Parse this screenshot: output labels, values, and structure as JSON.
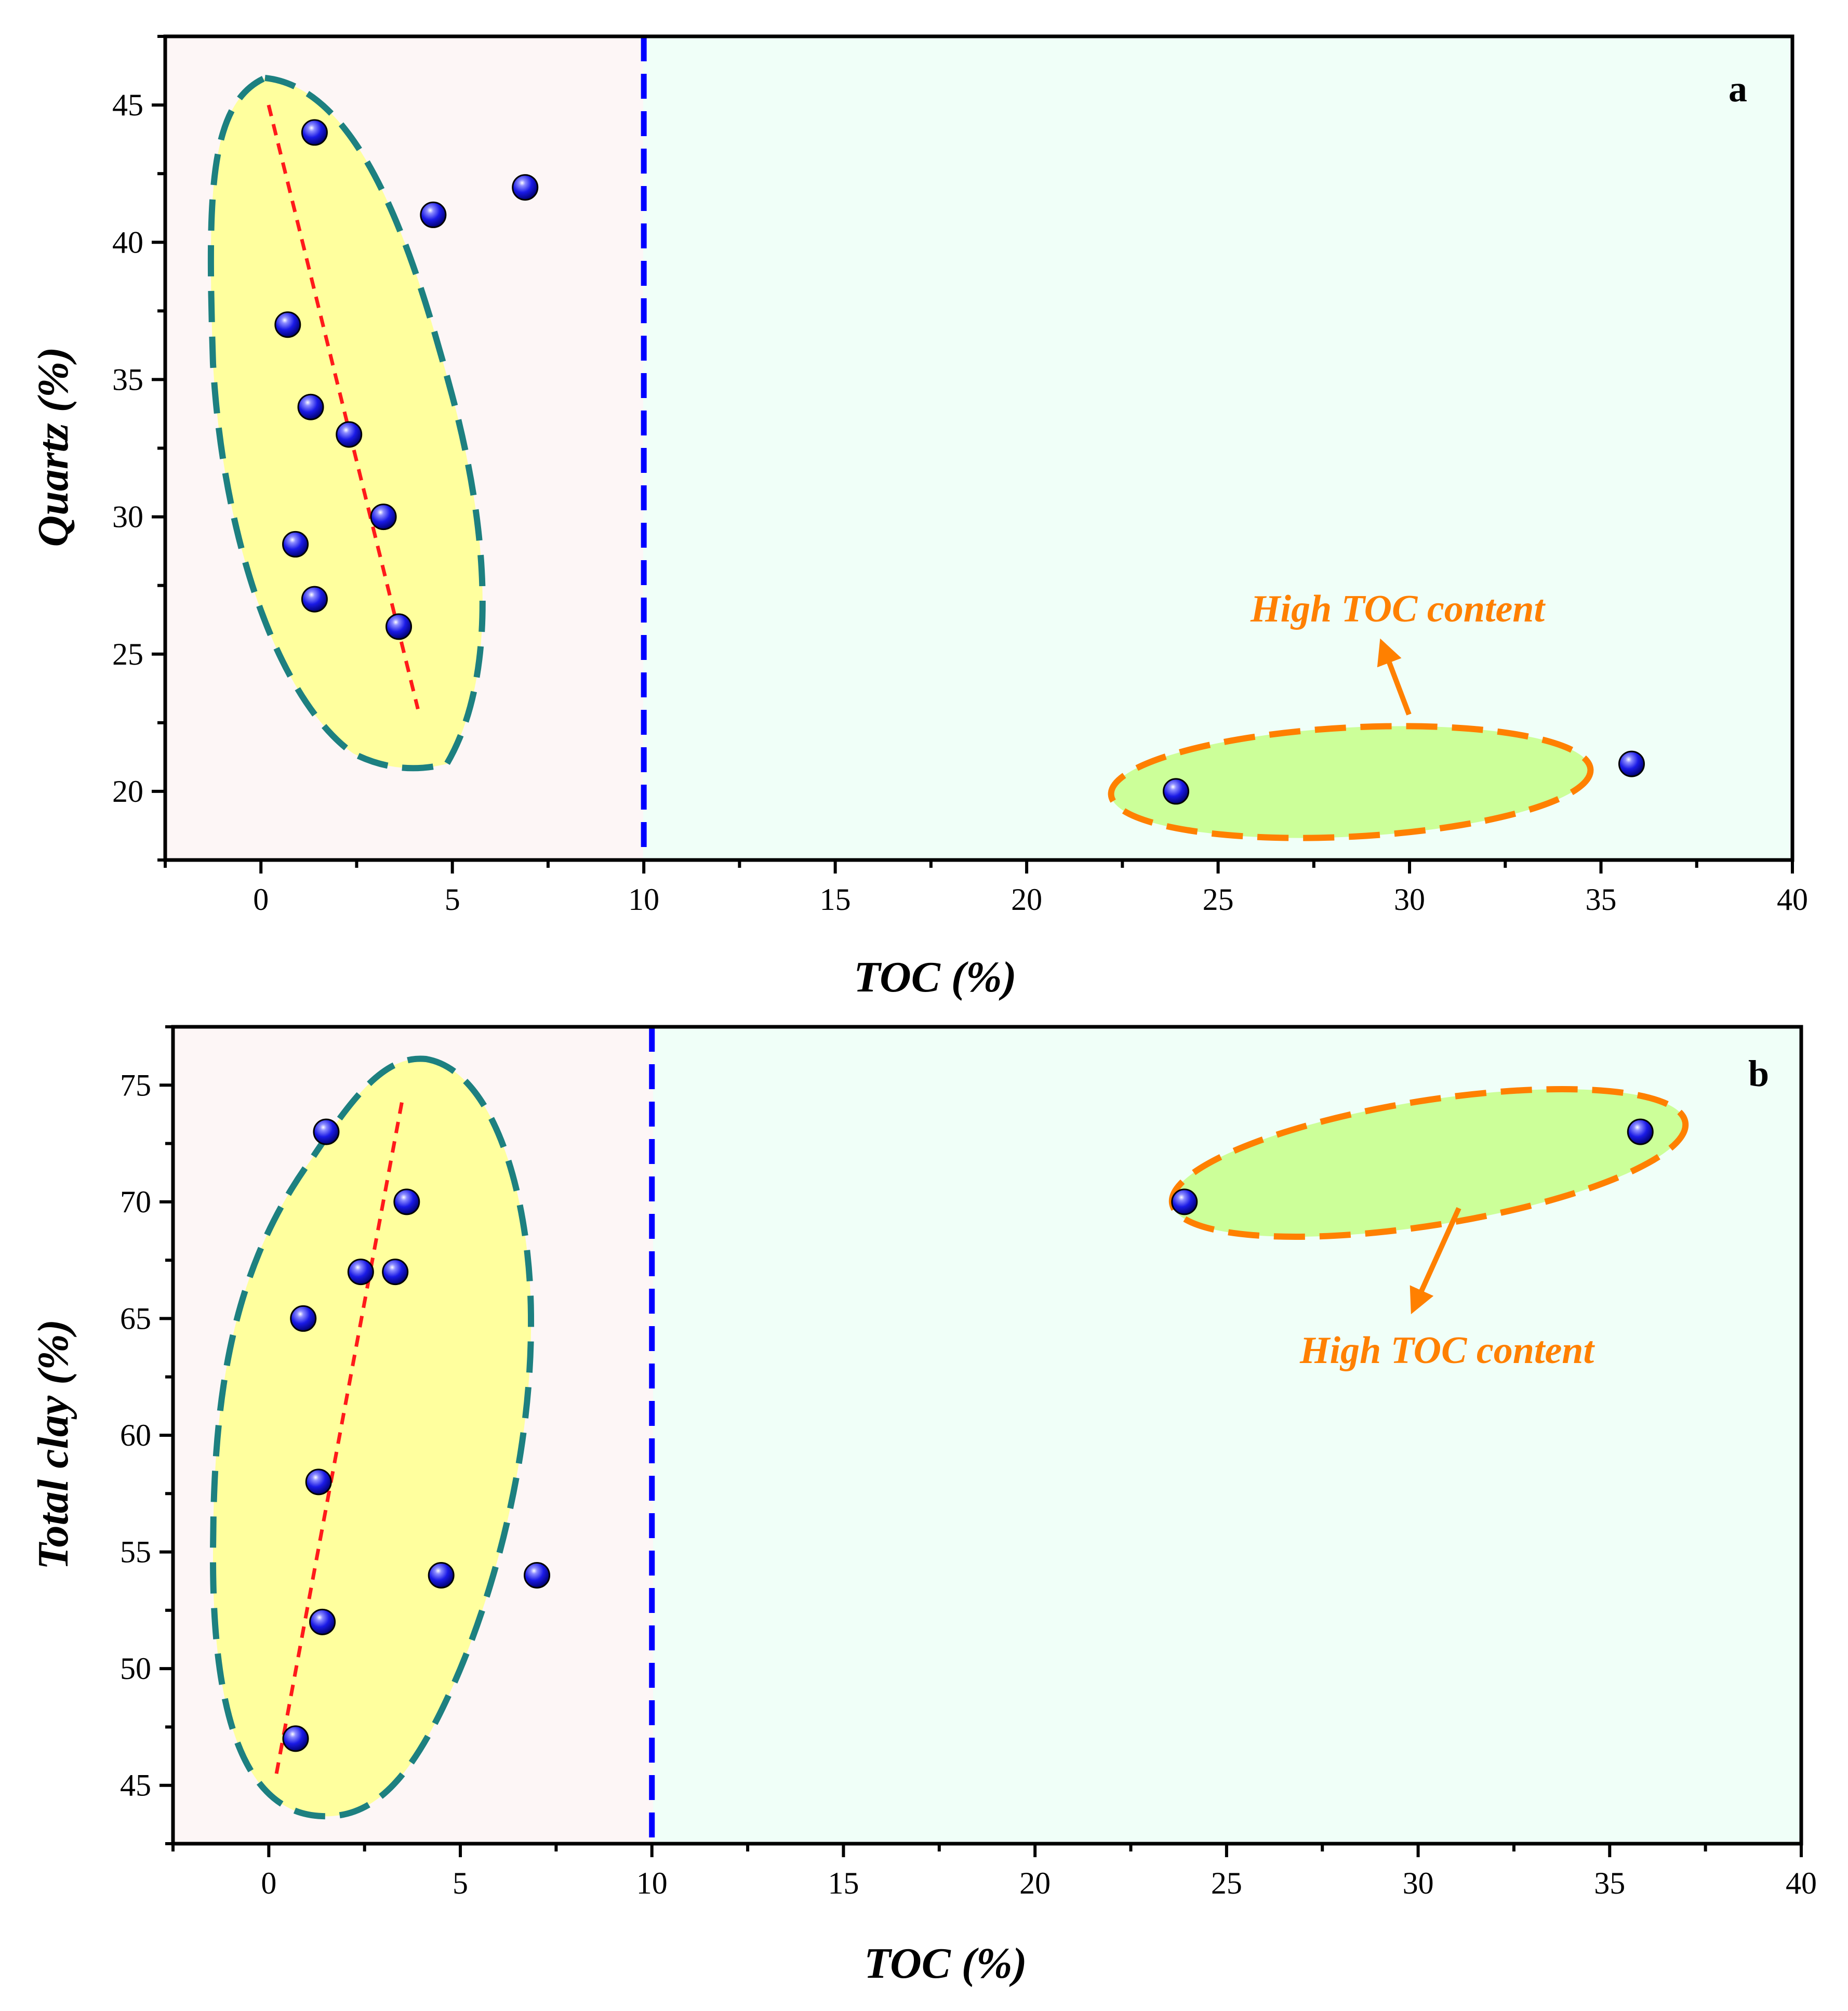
{
  "chart_data": [
    {
      "panel": "a",
      "type": "scatter",
      "xlabel": "TOC (%)",
      "ylabel": "Quartz (%)",
      "xlim": [
        -2.5,
        40
      ],
      "ylim": [
        17.5,
        47.5
      ],
      "xticks": [
        0,
        5,
        10,
        15,
        20,
        25,
        30,
        35,
        40
      ],
      "yticks": [
        20,
        25,
        30,
        35,
        40,
        45
      ],
      "threshold_x": 10,
      "annotation": "High TOC content",
      "points": [
        {
          "x": 1.4,
          "y": 44
        },
        {
          "x": 4.5,
          "y": 41
        },
        {
          "x": 6.9,
          "y": 42
        },
        {
          "x": 0.7,
          "y": 37
        },
        {
          "x": 1.3,
          "y": 34
        },
        {
          "x": 2.3,
          "y": 33
        },
        {
          "x": 3.2,
          "y": 30
        },
        {
          "x": 0.9,
          "y": 29
        },
        {
          "x": 1.4,
          "y": 27
        },
        {
          "x": 3.6,
          "y": 26
        },
        {
          "x": 23.9,
          "y": 20
        },
        {
          "x": 35.8,
          "y": 21
        }
      ],
      "trend_line": [
        {
          "x": 0.2,
          "y": 45
        },
        {
          "x": 4.1,
          "y": 23
        }
      ]
    },
    {
      "panel": "b",
      "type": "scatter",
      "xlabel": "TOC (%)",
      "ylabel": "Total clay (%)",
      "xlim": [
        -2.5,
        40
      ],
      "ylim": [
        42.5,
        77.5
      ],
      "xticks": [
        0,
        5,
        10,
        15,
        20,
        25,
        30,
        35,
        40
      ],
      "yticks": [
        45,
        50,
        55,
        60,
        65,
        70,
        75
      ],
      "threshold_x": 10,
      "annotation": "High TOC content",
      "points": [
        {
          "x": 1.5,
          "y": 73
        },
        {
          "x": 3.6,
          "y": 70
        },
        {
          "x": 2.4,
          "y": 67
        },
        {
          "x": 3.3,
          "y": 67
        },
        {
          "x": 0.9,
          "y": 65
        },
        {
          "x": 1.3,
          "y": 58
        },
        {
          "x": 4.5,
          "y": 54
        },
        {
          "x": 7.0,
          "y": 54
        },
        {
          "x": 1.4,
          "y": 52
        },
        {
          "x": 0.7,
          "y": 47
        },
        {
          "x": 23.9,
          "y": 70
        },
        {
          "x": 35.8,
          "y": 73
        }
      ],
      "trend_line": [
        {
          "x": 0.2,
          "y": 45.5
        },
        {
          "x": 3.5,
          "y": 74.5
        }
      ]
    }
  ],
  "colors": {
    "low_region": "#fdf6f6",
    "high_region": "#f0fff8",
    "threshold_line": "#0000ff",
    "low_cluster_fill": "#ffff9e",
    "low_cluster_stroke": "#1d8080",
    "high_cluster_fill": "#ccff99",
    "high_cluster_stroke": "#ff8000",
    "trend_line": "#ff1a1a",
    "point": "#1a1ae6",
    "annotation": "#ff8000"
  }
}
